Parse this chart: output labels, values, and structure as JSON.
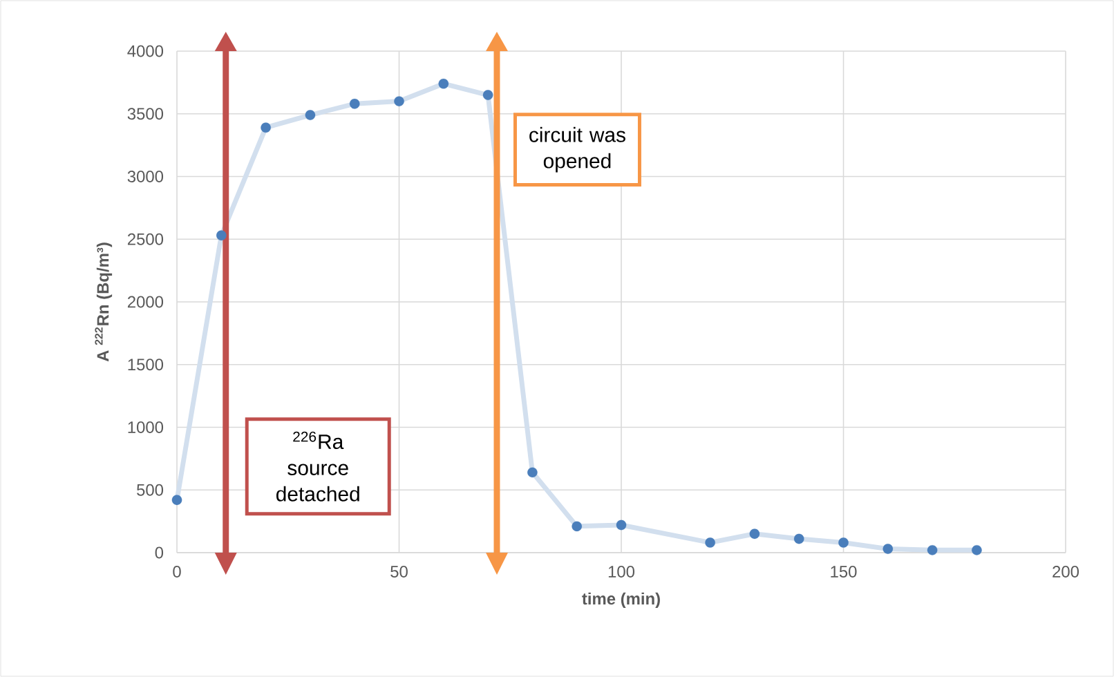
{
  "chart_data": {
    "type": "line",
    "xlabel": "time (min)",
    "ylabel": "A $^{222}$Rn (Bq/m³)",
    "x": [
      0,
      10,
      20,
      30,
      40,
      50,
      60,
      70,
      80,
      90,
      100,
      120,
      130,
      140,
      150,
      160,
      170,
      180
    ],
    "series": [
      {
        "color": "#4a7ebb",
        "values": [
          420,
          2530,
          3390,
          3490,
          3580,
          3600,
          3740,
          3650,
          640,
          210,
          220,
          80,
          150,
          110,
          80,
          30,
          20,
          20
        ]
      }
    ],
    "xlim": [
      0,
      200
    ],
    "xticks": [
      0,
      50,
      100,
      150,
      200
    ],
    "ylim": [
      0,
      4000
    ],
    "yticks": [
      0,
      500,
      1000,
      1500,
      2000,
      2500,
      3000,
      3500,
      4000
    ],
    "grid": true,
    "marker": "circle",
    "ref_lines": [
      {
        "axis": "x",
        "value": 11,
        "label": "$^{226}$Ra source detached",
        "color": "#c0504d"
      },
      {
        "axis": "x",
        "value": 72,
        "label": "circuit was opened",
        "color": "#f79646"
      }
    ]
  }
}
